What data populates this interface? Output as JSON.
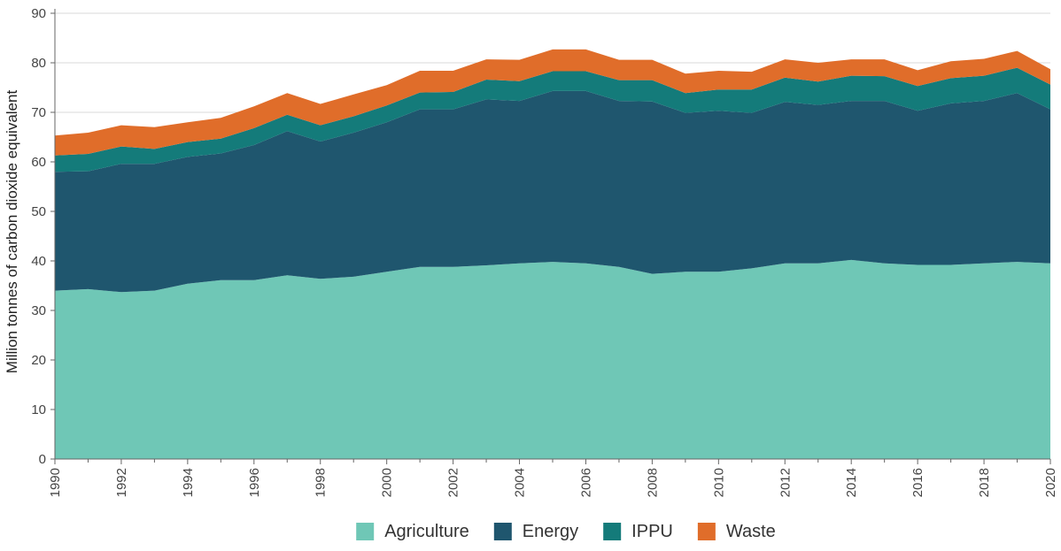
{
  "chart_data": {
    "type": "area",
    "stacked": true,
    "title": "",
    "xlabel": "",
    "ylabel": "Million tonnes of carbon dioxide equivalent",
    "ylim": [
      0,
      90
    ],
    "yticks": [
      0,
      10,
      20,
      30,
      40,
      50,
      60,
      70,
      80,
      90
    ],
    "xlim": [
      1990,
      2020
    ],
    "xticks": [
      1990,
      1992,
      1994,
      1996,
      1998,
      2000,
      2002,
      2004,
      2006,
      2008,
      2010,
      2012,
      2014,
      2016,
      2018,
      2020
    ],
    "grid": true,
    "legend_position": "bottom",
    "x": [
      1990,
      1991,
      1992,
      1993,
      1994,
      1995,
      1996,
      1997,
      1998,
      1999,
      2000,
      2001,
      2002,
      2003,
      2004,
      2005,
      2006,
      2007,
      2008,
      2009,
      2010,
      2011,
      2012,
      2013,
      2014,
      2015,
      2016,
      2017,
      2018,
      2019,
      2020
    ],
    "series": [
      {
        "name": "Agriculture",
        "color": "#6fc7b6",
        "values": [
          34.0,
          34.3,
          33.7,
          34.0,
          35.4,
          36.1,
          36.1,
          37.1,
          36.4,
          36.8,
          37.8,
          38.8,
          38.8,
          39.1,
          39.5,
          39.8,
          39.5,
          38.8,
          37.4,
          37.8,
          37.8,
          38.5,
          39.5,
          39.5,
          40.2,
          39.5,
          39.2,
          39.2,
          39.5,
          39.8,
          39.5
        ]
      },
      {
        "name": "Energy",
        "color": "#1f566e",
        "values": [
          24.0,
          23.8,
          25.9,
          25.6,
          25.6,
          25.6,
          27.3,
          29.1,
          27.7,
          29.1,
          30.2,
          31.8,
          31.8,
          33.5,
          32.8,
          34.5,
          34.8,
          33.5,
          34.8,
          32.1,
          32.5,
          31.4,
          32.6,
          32.0,
          32.1,
          32.8,
          31.1,
          32.6,
          32.8,
          34.1,
          31.1
        ]
      },
      {
        "name": "IPPU",
        "color": "#147b7a",
        "values": [
          3.3,
          3.5,
          3.5,
          3.0,
          3.0,
          3.0,
          3.4,
          3.3,
          3.3,
          3.3,
          3.4,
          3.4,
          3.5,
          4.0,
          4.0,
          4.0,
          4.0,
          4.2,
          4.3,
          4.0,
          4.3,
          4.7,
          4.9,
          4.7,
          5.1,
          5.0,
          5.0,
          5.1,
          5.1,
          5.1,
          5.0
        ]
      },
      {
        "name": "Waste",
        "color": "#e06d2a",
        "values": [
          4.0,
          4.3,
          4.3,
          4.4,
          4.0,
          4.2,
          4.4,
          4.4,
          4.3,
          4.4,
          4.1,
          4.4,
          4.3,
          4.1,
          4.3,
          4.4,
          4.4,
          4.1,
          4.1,
          3.9,
          3.8,
          3.6,
          3.7,
          3.8,
          3.3,
          3.4,
          3.2,
          3.4,
          3.4,
          3.4,
          3.1
        ]
      }
    ]
  }
}
